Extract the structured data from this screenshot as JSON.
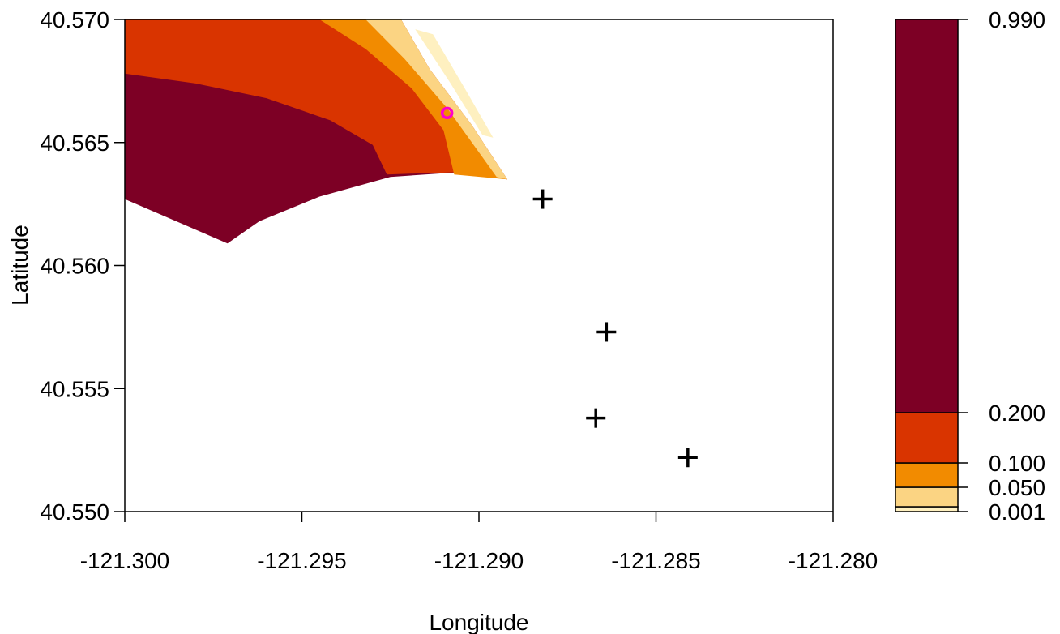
{
  "chart_data": {
    "type": "heatmap",
    "title": "",
    "xlabel": "Longitude",
    "ylabel": "Latitude",
    "xlim": [
      -121.3,
      -121.28
    ],
    "ylim": [
      40.55,
      40.57
    ],
    "x_ticks": [
      "-121.300",
      "-121.295",
      "-121.290",
      "-121.285",
      "-121.280"
    ],
    "y_ticks": [
      "40.550",
      "40.555",
      "40.560",
      "40.565",
      "40.570"
    ],
    "legend": {
      "placement": "right",
      "breaks": [
        0.001,
        0.05,
        0.1,
        0.2,
        0.99
      ],
      "labels": [
        "0.001",
        "0.050",
        "0.100",
        "0.200",
        "0.990"
      ],
      "colors": [
        "#FEF0C0",
        "#FBD483",
        "#F28B00",
        "#D93400",
        "#7D0025"
      ]
    },
    "contour_bands": [
      {
        "range": [
          0.2,
          0.99
        ],
        "color": "#7D0025",
        "polygon": [
          [
            -121.3,
            40.5627
          ],
          [
            -121.2971,
            40.5609
          ],
          [
            -121.2962,
            40.5618
          ],
          [
            -121.2945,
            40.5628
          ],
          [
            -121.2925,
            40.5636
          ],
          [
            -121.2905,
            40.5638
          ],
          [
            -121.2892,
            40.5635
          ],
          [
            -121.2902,
            40.5657
          ],
          [
            -121.2914,
            40.568
          ],
          [
            -121.2922,
            40.57
          ],
          [
            -121.3,
            40.57
          ]
        ]
      },
      {
        "range": [
          0.1,
          0.2
        ],
        "color": "#D93400",
        "polygon": [
          [
            -121.3,
            40.5678
          ],
          [
            -121.298,
            40.5674
          ],
          [
            -121.296,
            40.5668
          ],
          [
            -121.2942,
            40.5659
          ],
          [
            -121.293,
            40.5649
          ],
          [
            -121.2926,
            40.5637
          ],
          [
            -121.2905,
            40.5638
          ],
          [
            -121.2892,
            40.5635
          ],
          [
            -121.2902,
            40.5657
          ],
          [
            -121.2914,
            40.568
          ],
          [
            -121.2922,
            40.57
          ],
          [
            -121.3,
            40.57
          ]
        ]
      },
      {
        "range": [
          0.05,
          0.1
        ],
        "color": "#F28B00",
        "polygon": [
          [
            -121.2907,
            40.5637
          ],
          [
            -121.2892,
            40.5635
          ],
          [
            -121.2902,
            40.5657
          ],
          [
            -121.2914,
            40.568
          ],
          [
            -121.2922,
            40.57
          ],
          [
            -121.2945,
            40.57
          ],
          [
            -121.2932,
            40.5688
          ],
          [
            -121.2919,
            40.5672
          ],
          [
            -121.291,
            40.5655
          ]
        ]
      },
      {
        "range": [
          0.001,
          0.05
        ],
        "color": "#FBD483",
        "polygon": [
          [
            -121.2895,
            40.5636
          ],
          [
            -121.2892,
            40.5635
          ],
          [
            -121.2902,
            40.5657
          ],
          [
            -121.2914,
            40.568
          ],
          [
            -121.2922,
            40.57
          ],
          [
            -121.2932,
            40.57
          ],
          [
            -121.2921,
            40.5684
          ],
          [
            -121.2909,
            40.5664
          ],
          [
            -121.2901,
            40.5648
          ]
        ]
      },
      {
        "range": [
          0,
          0.001
        ],
        "color": "#FEF0C0",
        "polygon": [
          [
            -121.2913,
            40.5694
          ],
          [
            -121.2904,
            40.5672
          ],
          [
            -121.2896,
            40.5652
          ],
          [
            -121.2899,
            40.5653
          ],
          [
            -121.2908,
            40.5674
          ],
          [
            -121.2918,
            40.5696
          ]
        ]
      }
    ],
    "points": [
      {
        "x": -121.2882,
        "y": 40.5627,
        "marker": "cross",
        "color": "#000000"
      },
      {
        "x": -121.2864,
        "y": 40.5573,
        "marker": "cross",
        "color": "#000000"
      },
      {
        "x": -121.2867,
        "y": 40.5538,
        "marker": "cross",
        "color": "#000000"
      },
      {
        "x": -121.2841,
        "y": 40.5522,
        "marker": "cross",
        "color": "#000000"
      },
      {
        "x": -121.2909,
        "y": 40.5662,
        "marker": "circle",
        "color": "#FF00CC"
      }
    ]
  }
}
